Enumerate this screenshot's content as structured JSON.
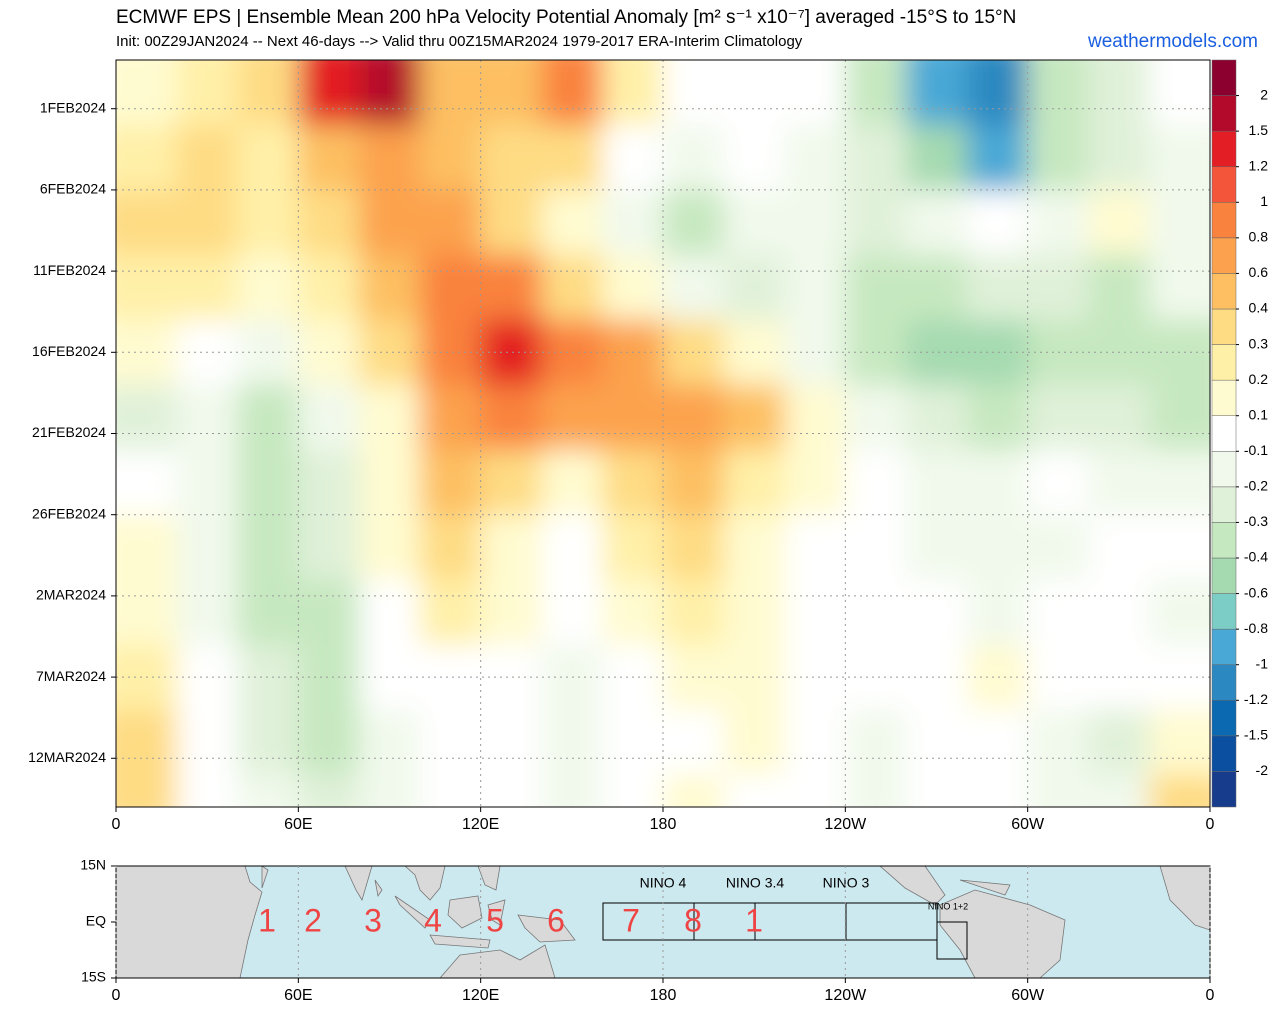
{
  "chart_data": {
    "type": "hovmoller",
    "title": "ECMWF EPS | Ensemble Mean 200 hPa Velocity Potential Anomaly [m² s⁻¹ x10⁻⁷] averaged -15°S to 15°N",
    "subtitle": "Init: 00Z29JAN2024 -- Next 46-days --> Valid thru 00Z15MAR2024 1979-2017 ERA-Interim Climatology",
    "credit": "weathermodels.com",
    "xlim": [
      0,
      360
    ],
    "xticks": [
      0,
      {
        "value": 60,
        "label": "60E"
      },
      {
        "value": 120,
        "label": "120E"
      },
      180,
      {
        "value": 240,
        "label": "120W"
      },
      {
        "value": 300,
        "label": "60W"
      },
      {
        "value": 360,
        "label": "0"
      }
    ],
    "ylim": [
      "2024-01-29",
      "2024-03-15"
    ],
    "yticks": [
      {
        "value": "2024-02-01",
        "label": "1FEB2024"
      },
      {
        "value": "2024-02-06",
        "label": "6FEB2024"
      },
      {
        "value": "2024-02-11",
        "label": "11FEB2024"
      },
      {
        "value": "2024-02-16",
        "label": "16FEB2024"
      },
      {
        "value": "2024-02-21",
        "label": "21FEB2024"
      },
      {
        "value": "2024-02-26",
        "label": "26FEB2024"
      },
      {
        "value": "2024-03-02",
        "label": "2MAR2024"
      },
      {
        "value": "2024-03-07",
        "label": "7MAR2024"
      },
      {
        "value": "2024-03-12",
        "label": "12MAR2024"
      }
    ],
    "grid": true,
    "x": [
      10,
      30,
      50,
      70,
      90,
      110,
      130,
      150,
      170,
      190,
      210,
      230,
      250,
      270,
      290,
      310,
      330,
      350
    ],
    "y": [
      "2024-01-31",
      "2024-02-04",
      "2024-02-08",
      "2024-02-12",
      "2024-02-16",
      "2024-02-20",
      "2024-02-24",
      "2024-02-28",
      "2024-03-03",
      "2024-03-07",
      "2024-03-11",
      "2024-03-15"
    ],
    "z": [
      [
        0.1,
        0.2,
        0.3,
        1.2,
        1.5,
        0.4,
        0.5,
        0.8,
        0.2,
        0,
        0,
        0,
        -0.4,
        -1.0,
        -1.2,
        -0.4,
        -0.3,
        0
      ],
      [
        0.2,
        0.3,
        0.2,
        0.4,
        0.6,
        0.4,
        0.3,
        0.3,
        0,
        -0.2,
        -0.1,
        -0.2,
        -0.3,
        -0.6,
        -1.0,
        -0.4,
        -0.3,
        -0.2
      ],
      [
        0.3,
        0.3,
        0.2,
        0.3,
        0.6,
        0.6,
        0.3,
        0.1,
        -0.2,
        -0.4,
        -0.2,
        -0.2,
        -0.3,
        -0.2,
        -0.1,
        -0.2,
        0.1,
        -0.2
      ],
      [
        0.2,
        0.2,
        0.1,
        0.2,
        0.4,
        0.8,
        0.8,
        0.3,
        0.1,
        -0.2,
        -0.3,
        -0.2,
        -0.4,
        -0.4,
        -0.3,
        -0.3,
        -0.4,
        -0.2
      ],
      [
        0.1,
        -0.1,
        -0.2,
        0.1,
        0.3,
        0.8,
        1.2,
        0.8,
        0.6,
        0.3,
        0.1,
        -0.2,
        -0.4,
        -0.6,
        -0.6,
        -0.4,
        -0.4,
        -0.4
      ],
      [
        -0.3,
        -0.2,
        -0.4,
        -0.2,
        0.1,
        0.6,
        0.8,
        0.6,
        0.6,
        0.6,
        0.4,
        0.1,
        -0.2,
        -0.3,
        -0.4,
        -0.3,
        -0.3,
        -0.4
      ],
      [
        -0.1,
        -0.2,
        -0.4,
        -0.3,
        0.1,
        0.4,
        0.3,
        0.1,
        0.3,
        0.4,
        0.2,
        0.1,
        0,
        -0.2,
        -0.2,
        -0.1,
        -0.2,
        -0.2
      ],
      [
        0.1,
        -0.2,
        -0.4,
        -0.3,
        0.1,
        0.3,
        0.1,
        -0.1,
        0.2,
        0.3,
        0.1,
        0,
        -0.1,
        -0.2,
        -0.2,
        -0.2,
        -0.1,
        -0.1
      ],
      [
        0.1,
        -0.2,
        -0.4,
        -0.4,
        0,
        0.2,
        0.1,
        0,
        0.1,
        0.2,
        0.1,
        0,
        -0.1,
        -0.1,
        -0.2,
        -0.1,
        -0.1,
        -0.2
      ],
      [
        0.2,
        -0.1,
        -0.3,
        -0.4,
        -0.1,
        0,
        -0.1,
        -0.2,
        0,
        0.1,
        0.1,
        0,
        -0.1,
        0,
        0.1,
        -0.1,
        -0.1,
        -0.1
      ],
      [
        0.3,
        -0.1,
        -0.3,
        -0.4,
        -0.2,
        -0.1,
        -0.1,
        -0.2,
        -0.1,
        0,
        0.1,
        -0.1,
        -0.2,
        -0.1,
        -0.1,
        -0.2,
        -0.3,
        0.1
      ],
      [
        0.3,
        -0.1,
        -0.2,
        -0.3,
        -0.2,
        -0.1,
        -0.1,
        -0.2,
        -0.1,
        0.1,
        0,
        -0.1,
        -0.2,
        -0.1,
        -0.1,
        -0.2,
        -0.2,
        0.3
      ]
    ],
    "colorbar": {
      "levels": [
        -2,
        -1.5,
        -1.2,
        -1,
        -0.8,
        -0.6,
        -0.4,
        -0.3,
        -0.2,
        -0.1,
        0.1,
        0.2,
        0.3,
        0.4,
        0.6,
        0.8,
        1,
        1.2,
        1.5,
        2
      ],
      "colors": [
        "#183c8c",
        "#0a4fa0",
        "#0a69b0",
        "#2c88c0",
        "#4aa8d6",
        "#7ccdc6",
        "#a5dab0",
        "#c6e8c0",
        "#e0f1d9",
        "#f1f9ec",
        "#ffffff",
        "#fffbd0",
        "#fff0a8",
        "#fedc84",
        "#fdbf62",
        "#fca24e",
        "#f9823e",
        "#f3553a",
        "#e31e24",
        "#b30a2c",
        "#8c0030"
      ]
    }
  },
  "map": {
    "xticks": [
      0,
      {
        "value": 60,
        "label": "60E"
      },
      {
        "value": 120,
        "label": "120E"
      },
      180,
      {
        "value": 240,
        "label": "120W"
      },
      {
        "value": 300,
        "label": "60W"
      },
      {
        "value": 360,
        "label": "0"
      }
    ],
    "ylim": [
      -15,
      15
    ],
    "yticks": [
      {
        "value": 15,
        "label": "15N"
      },
      {
        "value": 0,
        "label": "EQ"
      },
      {
        "value": -15,
        "label": "15S"
      }
    ],
    "regions": [
      "NINO 4",
      "NINO 3.4",
      "NINO 3",
      "NINO 1+2"
    ],
    "phases": [
      "1",
      "2",
      "3",
      "4",
      "5",
      "6",
      "7",
      "8",
      "1"
    ]
  }
}
